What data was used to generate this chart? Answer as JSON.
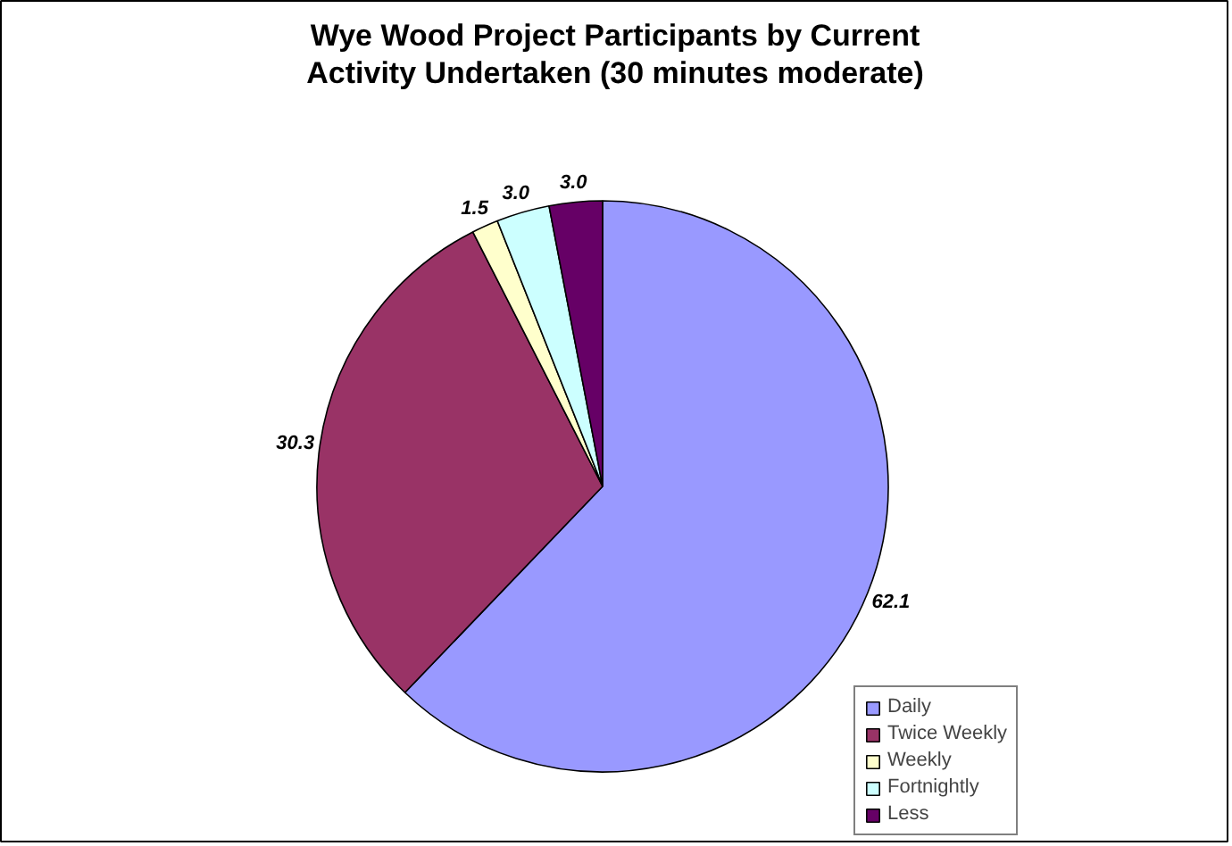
{
  "chart_data": {
    "type": "pie",
    "title": "Wye Wood Project Participants by Current Activity Undertaken (30 minutes moderate)",
    "categories": [
      "Daily",
      "Twice Weekly",
      "Weekly",
      "Fortnightly",
      "Less"
    ],
    "values": [
      62.1,
      30.3,
      1.5,
      3.0,
      3.0
    ],
    "value_labels": [
      "62.1",
      "30.3",
      "1.5",
      "3.0",
      "3.0"
    ],
    "colors": [
      "#9999ff",
      "#993366",
      "#ffffcc",
      "#ccffff",
      "#660066"
    ],
    "legend": "bottom right"
  }
}
